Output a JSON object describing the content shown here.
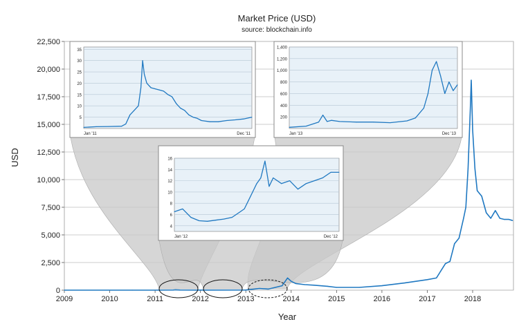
{
  "title": "Market Price (USD)",
  "subtitle": "source: blockchain.info",
  "colors": {
    "series": "#1f78c1",
    "inset_bg": "#e8f1f8",
    "funnel": "#c8c8c8"
  },
  "chart_data": {
    "type": "line",
    "xlabel": "Year",
    "ylabel": "USD",
    "xlim": [
      2009.0,
      2018.9
    ],
    "ylim": [
      0,
      22500
    ],
    "xticks": [
      "2009",
      "2010",
      "2011",
      "2012",
      "2013",
      "2014",
      "2015",
      "2016",
      "2017",
      "2018"
    ],
    "yticks": [
      "0",
      "2,500",
      "5,000",
      "7,500",
      "10,000",
      "12,500",
      "15,000",
      "17,500",
      "20,000",
      "22,500"
    ],
    "grid": true,
    "series": [
      {
        "x": [
          2009.0,
          2010.5,
          2011.0,
          2011.4,
          2011.45,
          2011.55,
          2012.0,
          2013.0,
          2013.3,
          2013.5,
          2013.8,
          2013.92,
          2014.0,
          2014.1,
          2014.3,
          2014.5,
          2014.8,
          2015.0,
          2015.5,
          2016.0,
          2016.5,
          2017.0,
          2017.2,
          2017.4,
          2017.5,
          2017.6,
          2017.7,
          2017.8,
          2017.85,
          2017.9,
          2017.95,
          2017.97,
          2018.0,
          2018.05,
          2018.1,
          2018.2,
          2018.3,
          2018.4,
          2018.5,
          2018.6,
          2018.7,
          2018.8,
          2018.88
        ],
        "y": [
          0,
          0,
          0,
          10,
          30,
          15,
          5,
          15,
          150,
          100,
          400,
          1100,
          800,
          600,
          500,
          450,
          350,
          250,
          250,
          400,
          650,
          950,
          1100,
          2400,
          2600,
          4200,
          4700,
          6500,
          7500,
          11000,
          16500,
          19000,
          14500,
          11000,
          9000,
          8500,
          7000,
          6500,
          7200,
          6500,
          6400,
          6400,
          6300
        ]
      }
    ],
    "insets": [
      {
        "id": "2011",
        "xticks": [
          "Jan '11",
          "Dec '11"
        ],
        "yticks": [
          "5",
          "10",
          "15",
          "20",
          "25",
          "30",
          "35"
        ],
        "ylim": [
          0,
          36
        ],
        "x": [
          0.0,
          0.15,
          0.3,
          0.45,
          0.5,
          0.55,
          0.6,
          0.65,
          0.68,
          0.7,
          0.72,
          0.75,
          0.8,
          0.85,
          0.9,
          0.95,
          1.0,
          1.05,
          1.1,
          1.15,
          1.2,
          1.25,
          1.3,
          1.35,
          1.4,
          1.5,
          1.6,
          1.7,
          1.8,
          1.9,
          2.0
        ],
        "y": [
          0.5,
          0.8,
          0.9,
          1.0,
          2.0,
          6.0,
          8.0,
          10.0,
          18.0,
          30.0,
          24.0,
          20.0,
          18.0,
          17.5,
          17.0,
          16.5,
          15.0,
          14.0,
          11.0,
          9.0,
          8.0,
          6.0,
          5.0,
          4.5,
          3.5,
          3.0,
          3.0,
          3.5,
          3.8,
          4.2,
          5.0
        ]
      },
      {
        "id": "2012",
        "xticks": [
          "Jan '12",
          "Dec '12"
        ],
        "yticks": [
          "4",
          "6",
          "8",
          "10",
          "12",
          "14",
          "16"
        ],
        "ylim": [
          3,
          16
        ],
        "x": [
          0.0,
          0.1,
          0.2,
          0.3,
          0.4,
          0.5,
          0.6,
          0.7,
          0.8,
          0.85,
          0.9,
          0.95,
          1.0,
          1.05,
          1.1,
          1.15,
          1.2,
          1.3,
          1.4,
          1.5,
          1.6,
          1.7,
          1.8,
          1.9,
          2.0
        ],
        "y": [
          6.5,
          7.0,
          5.5,
          4.9,
          4.8,
          5.0,
          5.2,
          5.5,
          6.5,
          7.0,
          8.5,
          10.0,
          11.5,
          12.5,
          15.5,
          11.0,
          12.5,
          11.5,
          12.0,
          10.5,
          11.5,
          12.0,
          12.5,
          13.5,
          13.5
        ]
      },
      {
        "id": "2013",
        "xticks": [
          "Jan '13",
          "Dec '13"
        ],
        "yticks": [
          "200",
          "400",
          "600",
          "800",
          "1,000",
          "1,200",
          "1,400"
        ],
        "ylim": [
          0,
          1400
        ],
        "x": [
          0.0,
          0.2,
          0.35,
          0.4,
          0.45,
          0.5,
          0.6,
          0.8,
          1.0,
          1.2,
          1.4,
          1.5,
          1.6,
          1.65,
          1.7,
          1.75,
          1.8,
          1.85,
          1.9,
          1.95,
          2.0
        ],
        "y": [
          20,
          40,
          110,
          230,
          120,
          140,
          120,
          110,
          110,
          100,
          130,
          180,
          350,
          600,
          1000,
          1150,
          900,
          600,
          800,
          650,
          750
        ]
      }
    ]
  }
}
